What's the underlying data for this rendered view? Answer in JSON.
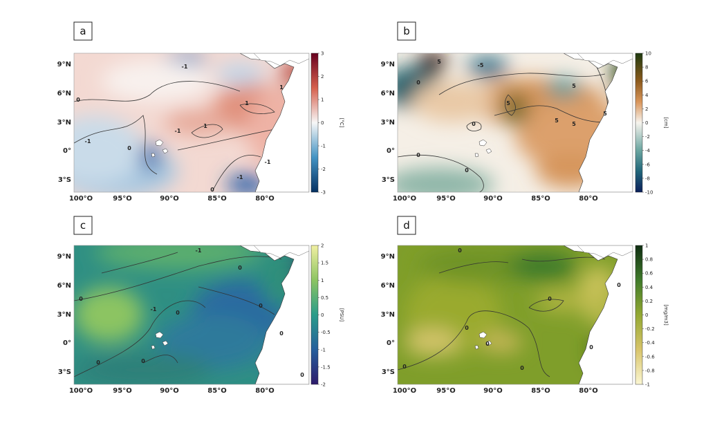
{
  "lat_ticks": [
    "9°N",
    "6°N",
    "3°N",
    "0°",
    "3°S"
  ],
  "lon_ticks": [
    "100°O",
    "95°O",
    "90°O",
    "85°O",
    "80°O"
  ],
  "panels": [
    {
      "label": "a",
      "unit": "[°C]",
      "colorbar_ticks": [
        "3",
        "2",
        "1",
        "0",
        "-1",
        "-2",
        "-3"
      ],
      "contour_labels": [
        "0",
        "-1",
        "-1",
        "0",
        "1",
        "1",
        "-1",
        "0",
        "-1",
        "-1",
        "1"
      ]
    },
    {
      "label": "b",
      "unit": "[cm]",
      "colorbar_ticks": [
        "10",
        "8",
        "6",
        "4",
        "2",
        "0",
        "-2",
        "-4",
        "-6",
        "-8",
        "-10"
      ],
      "contour_labels": [
        "5",
        "-5",
        "0",
        "5",
        "5",
        "5",
        "0",
        "5",
        "5",
        "0",
        "0"
      ]
    },
    {
      "label": "c",
      "unit": "[PSU]",
      "colorbar_ticks": [
        "2",
        "1.5",
        "1",
        "0.5",
        "0",
        "-0.5",
        "-1",
        "-1.5",
        "-2"
      ],
      "contour_labels": [
        "0",
        "-1",
        "0",
        "0",
        "-1",
        "0",
        "0",
        "0",
        "0",
        "0"
      ]
    },
    {
      "label": "d",
      "unit": "[mg/m3]",
      "colorbar_ticks": [
        "1",
        "0.8",
        "0.6",
        "0.4",
        "0.2",
        "0",
        "-0.2",
        "-0.4",
        "-0.6",
        "-0.8",
        "-1"
      ],
      "contour_labels": [
        "0",
        "0",
        "0",
        "0",
        "0",
        "0",
        "0",
        "0"
      ]
    }
  ]
}
